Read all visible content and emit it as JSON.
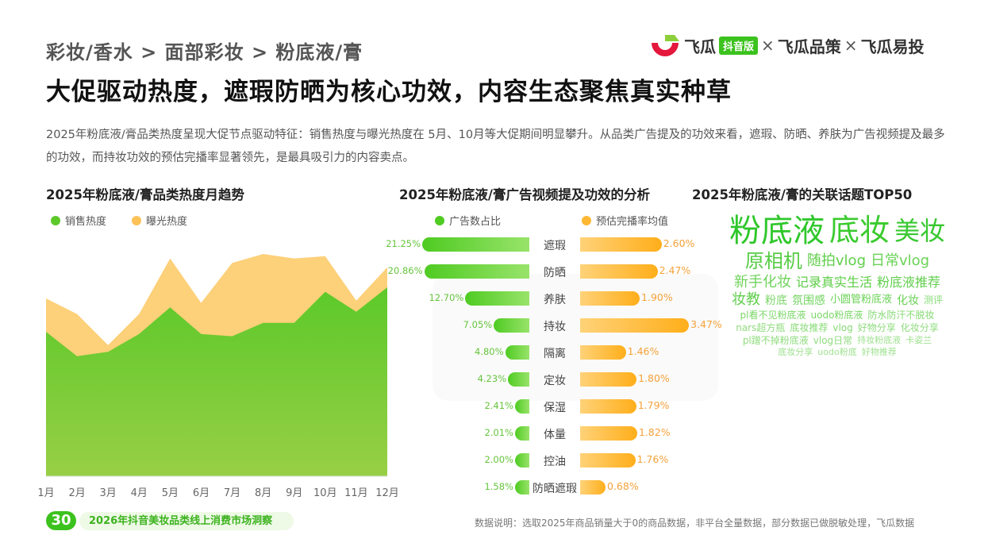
{
  "header": {
    "breadcrumb": "彩妆/香水 > 面部彩妆 > 粉底液/膏",
    "title": "大促驱动热度，遮瑕防晒为核心功效，内容生态聚焦真实种草",
    "logo": {
      "brand": "飞瓜",
      "badge": "抖音版",
      "x": "×",
      "p2": "飞瓜品策",
      "p3": "飞瓜易投"
    },
    "description": "2025年粉底液/膏品类热度呈现大促节点驱动特征：销售热度与曝光热度在 5月、10月等大促期间明显攀升。从品类广告提及的功效来看，遮瑕、防晒、养肤为广告视频提及最多的功效，而持妆功效的预估完播率显著领先，是最具吸引力的内容卖点。"
  },
  "watermark": "飞瓜数据",
  "chart_data": [
    {
      "type": "area",
      "title": "2025年粉底液/膏品类热度月趋势",
      "categories": [
        "1月",
        "2月",
        "3月",
        "4月",
        "5月",
        "6月",
        "7月",
        "8月",
        "9月",
        "10月",
        "11月",
        "12月"
      ],
      "ylim": [
        0,
        100
      ],
      "grid": false,
      "legend": "top-left",
      "series": [
        {
          "name": "销售热度",
          "color": "#5cc92a",
          "values": [
            65,
            54,
            56,
            64,
            76,
            64,
            63,
            69,
            69,
            83,
            74,
            85
          ]
        },
        {
          "name": "曝光热度",
          "color": "#fdd07a",
          "values": [
            80,
            73,
            59,
            73,
            98,
            78,
            96,
            100,
            98,
            99,
            79,
            94
          ]
        }
      ]
    },
    {
      "type": "bar",
      "title": "2025年粉底液/膏广告视频提及功效的分析",
      "categories": [
        "遮瑕",
        "防晒",
        "养肤",
        "持妆",
        "隔离",
        "定妆",
        "保湿",
        "体量",
        "控油",
        "防晒遮瑕"
      ],
      "series": [
        {
          "name": "广告数占比",
          "color": "#4fcb22",
          "values": [
            21.25,
            20.86,
            12.7,
            7.05,
            4.8,
            4.23,
            2.41,
            2.01,
            2.0,
            1.58
          ],
          "labels": [
            "21.25%",
            "20.86%",
            "12.70%",
            "7.05%",
            "4.80%",
            "4.23%",
            "2.41%",
            "2.01%",
            "2.00%",
            "1.58%"
          ]
        },
        {
          "name": "预估完播率均值",
          "color": "#ffae1a",
          "values": [
            2.6,
            2.47,
            1.9,
            3.47,
            1.46,
            1.8,
            1.79,
            1.82,
            1.76,
            0.68
          ],
          "labels": [
            "2.60%",
            "2.47%",
            "1.90%",
            "3.47%",
            "1.46%",
            "1.80%",
            "1.79%",
            "1.82%",
            "1.76%",
            "0.68%"
          ]
        }
      ]
    }
  ],
  "wordcloud": {
    "title": "2025年粉底液/膏的关联话题TOP50",
    "words": [
      "粉底液",
      "底妆",
      "美妆",
      "原相机",
      "随拍vlog",
      "日常vlog",
      "新手化妆",
      "记录真实生活",
      "粉底液推荐",
      "妆教",
      "粉底",
      "氛围感",
      "小圆管粉底液",
      "化妆",
      "测评",
      "pl看不见粉底液",
      "uodo粉底液",
      "防水防汗不脱妆",
      "nars超方瓶",
      "底妆推荐",
      "vlog",
      "好物分享",
      "化妆分享",
      "pl蹭不掉粉底液",
      "vlog日常",
      "持妆粉底液",
      "卡姿兰",
      "底妆分享",
      "uodo粉底",
      "好物推荐"
    ]
  },
  "footer": {
    "page": "30",
    "report": "2026年抖音美妆品类线上消费市场洞察",
    "note": "数据说明：选取2025年商品销量大于0的商品数据，非平台全量数据，部分数据已做脱敏处理，飞瓜数据"
  }
}
